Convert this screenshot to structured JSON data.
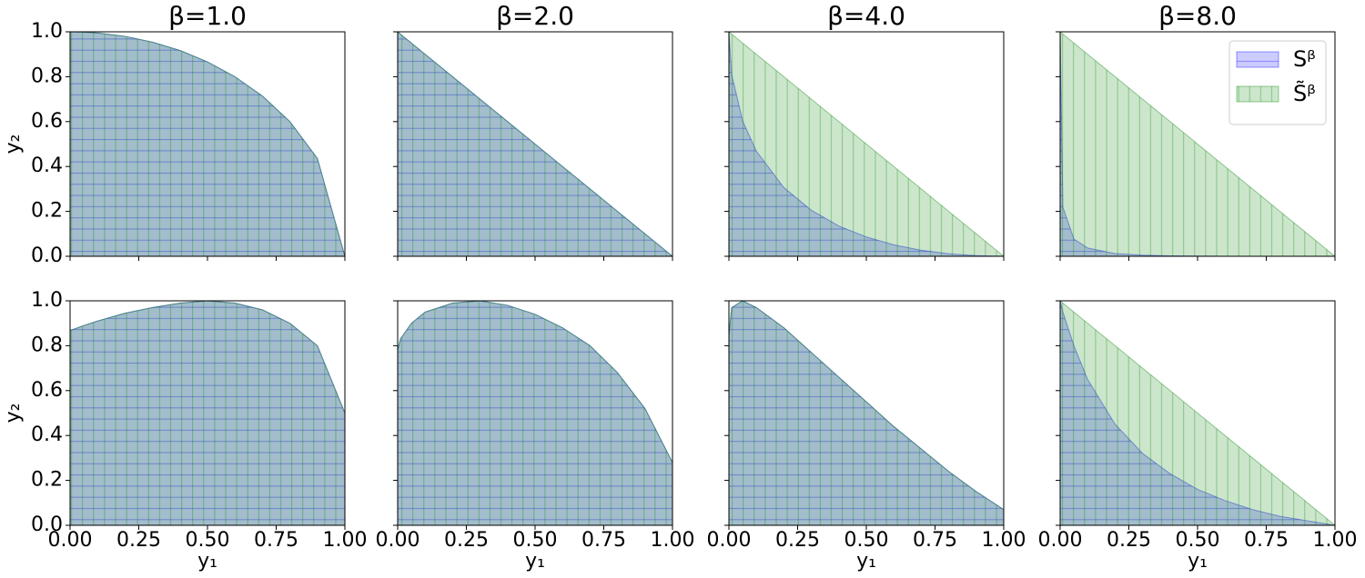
{
  "chart_data": [
    {
      "type": "area",
      "title": "β=1.0",
      "ylabel": "y₂",
      "x": [
        0,
        0.01,
        0.05,
        0.1,
        0.2,
        0.3,
        0.4,
        0.5,
        0.6,
        0.7,
        0.8,
        0.9,
        1
      ],
      "series": [
        {
          "color": "#0000ff",
          "hatch": "horizontal",
          "values": [
            1,
            1,
            0.999,
            0.995,
            0.98,
            0.954,
            0.917,
            0.866,
            0.8,
            0.714,
            0.6,
            0.436,
            0
          ]
        },
        {
          "color": "#008000",
          "hatch": "vertical",
          "values": [
            1,
            1,
            0.999,
            0.995,
            0.98,
            0.954,
            0.917,
            0.866,
            0.8,
            0.714,
            0.6,
            0.436,
            0
          ]
        }
      ],
      "xlim": [
        0,
        1
      ],
      "ylim": [
        0,
        1
      ],
      "xticks": [
        0,
        0.25,
        0.5,
        0.75,
        1
      ],
      "xtick_labels": false,
      "yticks": [
        {
          "value": 0,
          "label": "0.0"
        },
        0.2,
        0.4,
        0.6,
        0.8,
        {
          "value": 1,
          "label": "1.0"
        }
      ],
      "ytick_labels": true
    },
    {
      "type": "area",
      "title": "β=2.0",
      "x": [
        0,
        0.01,
        0.05,
        0.1,
        0.2,
        0.3,
        0.4,
        0.5,
        0.6,
        0.7,
        0.8,
        0.9,
        1
      ],
      "series": [
        {
          "color": "#0000ff",
          "hatch": "horizontal",
          "values": [
            1,
            0.99,
            0.95,
            0.9,
            0.8,
            0.7,
            0.6,
            0.5,
            0.4,
            0.3,
            0.2,
            0.1,
            0
          ]
        },
        {
          "color": "#008000",
          "hatch": "vertical",
          "values": [
            1,
            0.99,
            0.95,
            0.9,
            0.8,
            0.7,
            0.6,
            0.5,
            0.4,
            0.3,
            0.2,
            0.1,
            0
          ]
        }
      ],
      "xlim": [
        0,
        1
      ],
      "ylim": [
        0,
        1
      ],
      "xticks": [
        0,
        0.25,
        0.5,
        0.75,
        1
      ],
      "xtick_labels": false,
      "yticks": [
        0,
        0.2,
        0.4,
        0.6,
        0.8,
        1
      ],
      "ytick_labels": false
    },
    {
      "type": "area",
      "title": "β=4.0",
      "x": [
        0,
        0.01,
        0.05,
        0.1,
        0.2,
        0.3,
        0.4,
        0.5,
        0.6,
        0.7,
        0.8,
        0.9,
        1
      ],
      "series": [
        {
          "color": "#0000ff",
          "hatch": "horizontal",
          "values": [
            1,
            0.81,
            0.603,
            0.468,
            0.306,
            0.205,
            0.135,
            0.086,
            0.051,
            0.027,
            0.011,
            0.003,
            0
          ]
        },
        {
          "color": "#008000",
          "hatch": "vertical",
          "values": [
            1,
            0.99,
            0.95,
            0.9,
            0.8,
            0.7,
            0.6,
            0.5,
            0.4,
            0.3,
            0.2,
            0.1,
            0
          ]
        }
      ],
      "xlim": [
        0,
        1
      ],
      "ylim": [
        0,
        1
      ],
      "xticks": [
        0,
        0.25,
        0.5,
        0.75,
        1
      ],
      "xtick_labels": false,
      "yticks": [
        0,
        0.2,
        0.4,
        0.6,
        0.8,
        1
      ],
      "ytick_labels": false
    },
    {
      "type": "area",
      "title": "β=8.0",
      "legend": "upper right",
      "x": [
        0,
        0.01,
        0.05,
        0.1,
        0.2,
        0.3,
        0.4,
        0.5,
        0.6,
        0.7,
        0.8,
        0.9,
        1
      ],
      "series": [
        {
          "name": "Sᵝ",
          "color": "#0000ff",
          "hatch": "horizontal",
          "values": [
            1,
            0.219,
            0.077,
            0.037,
            0.012,
            0.005,
            0.002,
            0.001,
            0,
            0,
            0,
            0,
            0
          ]
        },
        {
          "name": "S̃ᵝ",
          "color": "#008000",
          "hatch": "vertical",
          "values": [
            1,
            0.99,
            0.95,
            0.9,
            0.8,
            0.7,
            0.6,
            0.5,
            0.4,
            0.3,
            0.2,
            0.1,
            0
          ]
        }
      ],
      "xlim": [
        0,
        1
      ],
      "ylim": [
        0,
        1
      ],
      "xticks": [
        0,
        0.25,
        0.5,
        0.75,
        1
      ],
      "xtick_labels": false,
      "yticks": [
        0,
        0.2,
        0.4,
        0.6,
        0.8,
        1
      ],
      "ytick_labels": false
    },
    {
      "type": "area",
      "xlabel": "y₁",
      "ylabel": "y₂",
      "x": [
        0,
        0.01,
        0.05,
        0.1,
        0.2,
        0.3,
        0.4,
        0.5,
        0.6,
        0.7,
        0.8,
        0.9,
        1
      ],
      "series": [
        {
          "color": "#0000ff",
          "hatch": "horizontal",
          "values": [
            0.87,
            0.872,
            0.89,
            0.91,
            0.945,
            0.97,
            0.99,
            1,
            0.99,
            0.96,
            0.9,
            0.8,
            0.5
          ]
        },
        {
          "color": "#008000",
          "hatch": "vertical",
          "values": [
            0.87,
            0.872,
            0.89,
            0.91,
            0.945,
            0.97,
            0.99,
            1,
            0.99,
            0.96,
            0.9,
            0.8,
            0.5
          ]
        }
      ],
      "xlim": [
        0,
        1
      ],
      "ylim": [
        0,
        1
      ],
      "xticks": [
        {
          "value": 0,
          "label": "0.00"
        },
        0.25,
        {
          "value": 0.5,
          "label": "0.50"
        },
        0.75,
        {
          "value": 1,
          "label": "1.00"
        }
      ],
      "xtick_labels": true,
      "yticks": [
        {
          "value": 0,
          "label": "0.0"
        },
        0.2,
        0.4,
        0.6,
        0.8,
        {
          "value": 1,
          "label": "1.0"
        }
      ],
      "ytick_labels": true
    },
    {
      "type": "area",
      "xlabel": "y₁",
      "x": [
        0,
        0.01,
        0.05,
        0.1,
        0.2,
        0.3,
        0.4,
        0.5,
        0.6,
        0.7,
        0.8,
        0.9,
        1
      ],
      "series": [
        {
          "color": "#0000ff",
          "hatch": "horizontal",
          "values": [
            0.78,
            0.83,
            0.9,
            0.95,
            0.99,
            1,
            0.98,
            0.94,
            0.88,
            0.8,
            0.68,
            0.52,
            0.28
          ]
        },
        {
          "color": "#008000",
          "hatch": "vertical",
          "values": [
            0.78,
            0.83,
            0.9,
            0.95,
            0.99,
            1,
            0.98,
            0.94,
            0.88,
            0.8,
            0.68,
            0.52,
            0.28
          ]
        }
      ],
      "xlim": [
        0,
        1
      ],
      "ylim": [
        0,
        1
      ],
      "xticks": [
        {
          "value": 0,
          "label": "0.00"
        },
        0.25,
        {
          "value": 0.5,
          "label": "0.50"
        },
        0.75,
        {
          "value": 1,
          "label": "1.00"
        }
      ],
      "xtick_labels": true,
      "yticks": [
        0,
        0.2,
        0.4,
        0.6,
        0.8,
        1
      ],
      "ytick_labels": false
    },
    {
      "type": "area",
      "xlabel": "y₁",
      "x": [
        0,
        0.01,
        0.05,
        0.1,
        0.2,
        0.3,
        0.4,
        0.5,
        0.6,
        0.7,
        0.8,
        0.9,
        1
      ],
      "series": [
        {
          "color": "#0000ff",
          "hatch": "horizontal",
          "values": [
            0.85,
            0.97,
            1,
            0.97,
            0.88,
            0.77,
            0.66,
            0.55,
            0.44,
            0.34,
            0.24,
            0.15,
            0.07
          ]
        },
        {
          "color": "#008000",
          "hatch": "vertical",
          "values": [
            0.85,
            0.97,
            1,
            0.97,
            0.88,
            0.77,
            0.66,
            0.55,
            0.44,
            0.34,
            0.24,
            0.15,
            0.07
          ]
        }
      ],
      "xlim": [
        0,
        1
      ],
      "ylim": [
        0,
        1
      ],
      "xticks": [
        {
          "value": 0,
          "label": "0.00"
        },
        0.25,
        {
          "value": 0.5,
          "label": "0.50"
        },
        0.75,
        {
          "value": 1,
          "label": "1.00"
        }
      ],
      "xtick_labels": true,
      "yticks": [
        0,
        0.2,
        0.4,
        0.6,
        0.8,
        1
      ],
      "ytick_labels": false
    },
    {
      "type": "area",
      "xlabel": "y₁",
      "x": [
        0,
        0.01,
        0.05,
        0.1,
        0.2,
        0.3,
        0.4,
        0.5,
        0.6,
        0.7,
        0.8,
        0.9,
        1
      ],
      "series": [
        {
          "color": "#0000ff",
          "hatch": "horizontal",
          "values": [
            1,
            0.95,
            0.8,
            0.65,
            0.45,
            0.32,
            0.23,
            0.16,
            0.11,
            0.07,
            0.04,
            0.02,
            0
          ]
        },
        {
          "color": "#008000",
          "hatch": "vertical",
          "values": [
            1,
            0.99,
            0.95,
            0.9,
            0.8,
            0.7,
            0.6,
            0.5,
            0.4,
            0.3,
            0.2,
            0.1,
            0
          ]
        }
      ],
      "xlim": [
        0,
        1
      ],
      "ylim": [
        0,
        1
      ],
      "xticks": [
        {
          "value": 0,
          "label": "0.00"
        },
        0.25,
        {
          "value": 0.5,
          "label": "0.50"
        },
        0.75,
        {
          "value": 1,
          "label": "1.00"
        }
      ],
      "xtick_labels": true,
      "yticks": [
        0,
        0.2,
        0.4,
        0.6,
        0.8,
        1
      ],
      "ytick_labels": false
    }
  ]
}
